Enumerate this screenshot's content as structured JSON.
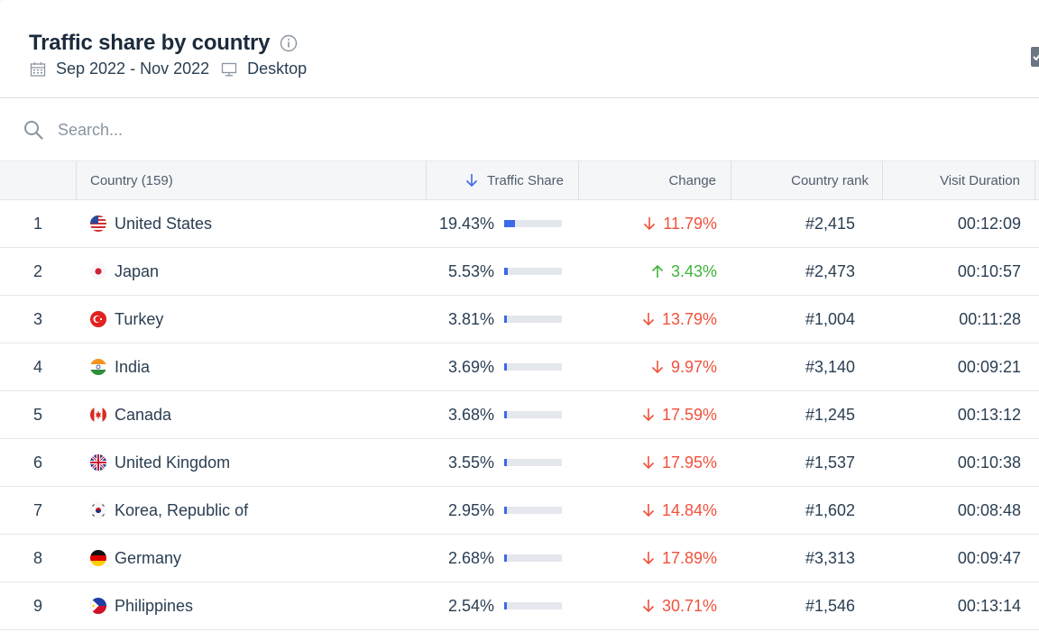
{
  "header": {
    "title": "Traffic share by country",
    "date_range": "Sep 2022 - Nov 2022",
    "device": "Desktop"
  },
  "search": {
    "placeholder": "Search..."
  },
  "table": {
    "columns": {
      "country": "Country (159)",
      "traffic_share": "Traffic Share",
      "change": "Change",
      "country_rank": "Country rank",
      "visit_duration": "Visit Duration"
    },
    "rows": [
      {
        "idx": "1",
        "country": "United States",
        "flag": "us",
        "share": "19.43%",
        "share_value": 19.43,
        "change": "11.79%",
        "direction": "down",
        "rank": "#2,415",
        "duration": "00:12:09"
      },
      {
        "idx": "2",
        "country": "Japan",
        "flag": "jp",
        "share": "5.53%",
        "share_value": 5.53,
        "change": "3.43%",
        "direction": "up",
        "rank": "#2,473",
        "duration": "00:10:57"
      },
      {
        "idx": "3",
        "country": "Turkey",
        "flag": "tr",
        "share": "3.81%",
        "share_value": 3.81,
        "change": "13.79%",
        "direction": "down",
        "rank": "#1,004",
        "duration": "00:11:28"
      },
      {
        "idx": "4",
        "country": "India",
        "flag": "in",
        "share": "3.69%",
        "share_value": 3.69,
        "change": "9.97%",
        "direction": "down",
        "rank": "#3,140",
        "duration": "00:09:21"
      },
      {
        "idx": "5",
        "country": "Canada",
        "flag": "ca",
        "share": "3.68%",
        "share_value": 3.68,
        "change": "17.59%",
        "direction": "down",
        "rank": "#1,245",
        "duration": "00:13:12"
      },
      {
        "idx": "6",
        "country": "United Kingdom",
        "flag": "gb",
        "share": "3.55%",
        "share_value": 3.55,
        "change": "17.95%",
        "direction": "down",
        "rank": "#1,537",
        "duration": "00:10:38"
      },
      {
        "idx": "7",
        "country": "Korea, Republic of",
        "flag": "kr",
        "share": "2.95%",
        "share_value": 2.95,
        "change": "14.84%",
        "direction": "down",
        "rank": "#1,602",
        "duration": "00:08:48"
      },
      {
        "idx": "8",
        "country": "Germany",
        "flag": "de",
        "share": "2.68%",
        "share_value": 2.68,
        "change": "17.89%",
        "direction": "down",
        "rank": "#3,313",
        "duration": "00:09:47"
      },
      {
        "idx": "9",
        "country": "Philippines",
        "flag": "ph",
        "share": "2.54%",
        "share_value": 2.54,
        "change": "30.71%",
        "direction": "down",
        "rank": "#1,546",
        "duration": "00:13:14"
      }
    ]
  },
  "colors": {
    "accent": "#3d69e9",
    "down": "#f0513c",
    "up": "#3fb33a"
  }
}
